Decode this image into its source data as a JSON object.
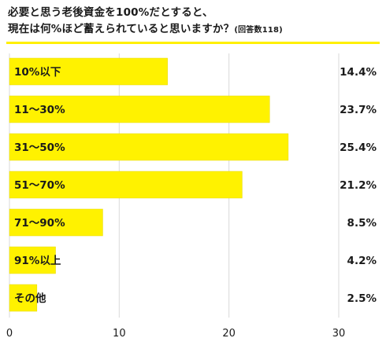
{
  "chart_data": {
    "type": "bar",
    "orientation": "horizontal",
    "title_line1": "必要と思う老後資金を100%だとすると、",
    "title_line2": "現在は何%ほど蓄えられていると思いますか？",
    "note": "(回答数118)",
    "categories": [
      "10%以下",
      "11〜30%",
      "31〜50%",
      "51〜70%",
      "71〜90%",
      "91%以上",
      "その他"
    ],
    "values": [
      14.4,
      23.7,
      25.4,
      21.2,
      8.5,
      4.2,
      2.5
    ],
    "value_labels": [
      "14.4%",
      "23.7%",
      "25.4%",
      "21.2%",
      "8.5%",
      "4.2%",
      "2.5%"
    ],
    "xlim": [
      0,
      30
    ],
    "xticks": [
      0,
      10,
      20,
      30
    ],
    "xtick_labels": [
      "0",
      "10",
      "20",
      "30"
    ],
    "grid": true,
    "colors": {
      "bar": "#fff200",
      "bar_edge": "#e6d800",
      "grid": "#d9d9d9",
      "rule": "#fff000",
      "text": "#1a1a1a"
    }
  }
}
